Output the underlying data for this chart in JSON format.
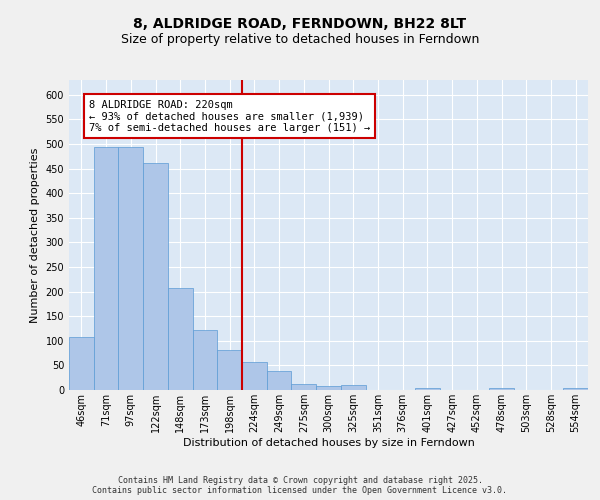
{
  "title": "8, ALDRIDGE ROAD, FERNDOWN, BH22 8LT",
  "subtitle": "Size of property relative to detached houses in Ferndown",
  "xlabel": "Distribution of detached houses by size in Ferndown",
  "ylabel": "Number of detached properties",
  "categories": [
    "46sqm",
    "71sqm",
    "97sqm",
    "122sqm",
    "148sqm",
    "173sqm",
    "198sqm",
    "224sqm",
    "249sqm",
    "275sqm",
    "300sqm",
    "325sqm",
    "351sqm",
    "376sqm",
    "401sqm",
    "427sqm",
    "452sqm",
    "478sqm",
    "503sqm",
    "528sqm",
    "554sqm"
  ],
  "values": [
    107,
    493,
    493,
    461,
    207,
    122,
    82,
    57,
    38,
    13,
    9,
    11,
    1,
    0,
    5,
    0,
    0,
    5,
    0,
    0,
    5
  ],
  "bar_color": "#aec6e8",
  "bar_edge_color": "#5b9bd5",
  "vline_index": 6.5,
  "vline_color": "#cc0000",
  "annotation_text": "8 ALDRIDGE ROAD: 220sqm\n← 93% of detached houses are smaller (1,939)\n7% of semi-detached houses are larger (151) →",
  "annotation_box_color": "#cc0000",
  "ylim": [
    0,
    630
  ],
  "yticks": [
    0,
    50,
    100,
    150,
    200,
    250,
    300,
    350,
    400,
    450,
    500,
    550,
    600
  ],
  "plot_background": "#dce8f5",
  "fig_background": "#f0f0f0",
  "footer_text": "Contains HM Land Registry data © Crown copyright and database right 2025.\nContains public sector information licensed under the Open Government Licence v3.0.",
  "title_fontsize": 10,
  "subtitle_fontsize": 9,
  "axis_label_fontsize": 8,
  "tick_fontsize": 7,
  "footer_fontsize": 6,
  "ann_fontsize": 7.5
}
